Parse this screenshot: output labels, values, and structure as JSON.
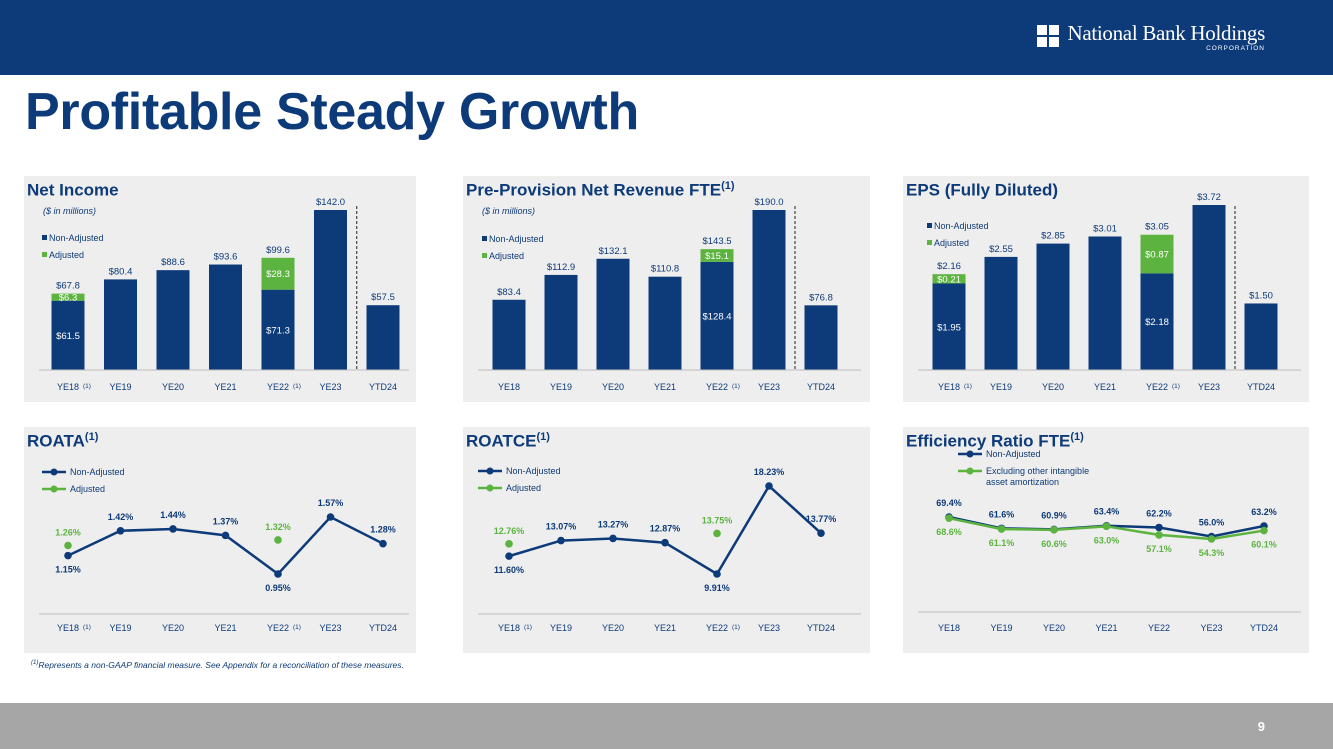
{
  "header": {
    "logo_text": "National Bank Holdings",
    "logo_sub": "CORPORATION"
  },
  "page_title": "Profitable Steady Growth",
  "footnote_marker": "(1)",
  "footnote_text": "Represents a non-GAAP financial measure.  See Appendix for a reconciliation of these measures.",
  "page_number": "9",
  "colors": {
    "navy": "#0d3a78",
    "green": "#5cb33f",
    "panel": "#eeeeee"
  },
  "chart_data": [
    {
      "type": "bar",
      "title": "Net Income",
      "title_sup": "",
      "subtitle": "($ in millions)",
      "categories": [
        "YE18",
        "YE19",
        "YE20",
        "YE21",
        "YE22",
        "YE23",
        "YTD24"
      ],
      "category_footnotes": [
        "(1)",
        "",
        "",
        "",
        "(1)",
        "",
        ""
      ],
      "series": [
        {
          "name": "Non-Adjusted",
          "values": [
            61.5,
            80.4,
            88.6,
            93.6,
            71.3,
            142.0,
            57.5
          ]
        },
        {
          "name": "Adjusted",
          "values": [
            6.3,
            null,
            null,
            null,
            28.3,
            null,
            null
          ]
        }
      ],
      "top_labels": [
        "$67.8",
        "$80.4",
        "$88.6",
        "$93.6",
        "$99.6",
        "$142.0",
        "$57.5"
      ],
      "inner_labels": [
        "$61.5",
        "",
        "",
        "",
        "$71.3",
        "",
        ""
      ],
      "adj_labels": [
        "$6.3",
        "",
        "",
        "",
        "$28.3",
        "",
        ""
      ],
      "ylim": [
        0,
        142.0
      ]
    },
    {
      "type": "bar",
      "title": "Pre-Provision Net Revenue FTE",
      "title_sup": "(1)",
      "subtitle": "($ in millions)",
      "categories": [
        "YE18",
        "YE19",
        "YE20",
        "YE21",
        "YE22",
        "YE23",
        "YTD24"
      ],
      "category_footnotes": [
        "",
        "",
        "",
        "",
        "(1)",
        "",
        ""
      ],
      "series": [
        {
          "name": "Non-Adjusted",
          "values": [
            83.4,
            112.9,
            132.1,
            110.8,
            128.4,
            190.0,
            76.8
          ]
        },
        {
          "name": "Adjusted",
          "values": [
            null,
            null,
            null,
            null,
            15.1,
            null,
            null
          ]
        }
      ],
      "top_labels": [
        "$83.4",
        "$112.9",
        "$132.1",
        "$110.8",
        "$143.5",
        "$190.0",
        "$76.8"
      ],
      "inner_labels": [
        "",
        "",
        "",
        "",
        "$128.4",
        "",
        ""
      ],
      "adj_labels": [
        "",
        "",
        "",
        "",
        "$15.1",
        "",
        ""
      ],
      "ylim": [
        0,
        190.0
      ]
    },
    {
      "type": "bar",
      "title": "EPS (Fully Diluted)",
      "title_sup": "",
      "subtitle": "",
      "categories": [
        "YE18",
        "YE19",
        "YE20",
        "YE21",
        "YE22",
        "YE23",
        "YTD24"
      ],
      "category_footnotes": [
        "(1)",
        "",
        "",
        "",
        "(1)",
        "",
        ""
      ],
      "series": [
        {
          "name": "Non-Adjusted",
          "values": [
            1.95,
            2.55,
            2.85,
            3.01,
            2.18,
            3.72,
            1.5
          ]
        },
        {
          "name": "Adjusted",
          "values": [
            0.21,
            null,
            null,
            null,
            0.87,
            null,
            null
          ]
        }
      ],
      "top_labels": [
        "$2.16",
        "$2.55",
        "$2.85",
        "$3.01",
        "$3.05",
        "$3.72",
        "$1.50"
      ],
      "inner_labels": [
        "$1.95",
        "",
        "",
        "",
        "$2.18",
        "",
        ""
      ],
      "adj_labels": [
        "$0.21",
        "",
        "",
        "",
        "$0.87",
        "",
        ""
      ],
      "ylim": [
        0,
        3.72
      ]
    },
    {
      "type": "line",
      "title": "ROATA",
      "title_sup": "(1)",
      "categories": [
        "YE18",
        "YE19",
        "YE20",
        "YE21",
        "YE22",
        "YE23",
        "YTD24"
      ],
      "category_footnotes": [
        "(1)",
        "",
        "",
        "",
        "(1)",
        "",
        ""
      ],
      "series": [
        {
          "name": "Non-Adjusted",
          "values": [
            1.15,
            1.42,
            1.44,
            1.37,
            0.95,
            1.57,
            1.28
          ],
          "labels": [
            "1.15%",
            "1.42%",
            "1.44%",
            "1.37%",
            "0.95%",
            "1.57%",
            "1.28%"
          ]
        },
        {
          "name": "Adjusted",
          "values": [
            1.26,
            null,
            null,
            null,
            1.32,
            null,
            null
          ],
          "labels": [
            "1.26%",
            "",
            "",
            "",
            "1.32%",
            "",
            ""
          ]
        }
      ],
      "ylim": [
        0.95,
        1.57
      ]
    },
    {
      "type": "line",
      "title": "ROATCE",
      "title_sup": "(1)",
      "categories": [
        "YE18",
        "YE19",
        "YE20",
        "YE21",
        "YE22",
        "YE23",
        "YTD24"
      ],
      "category_footnotes": [
        "(1)",
        "",
        "",
        "",
        "(1)",
        "",
        ""
      ],
      "series": [
        {
          "name": "Non-Adjusted",
          "values": [
            11.6,
            13.07,
            13.27,
            12.87,
            9.91,
            18.23,
            13.77
          ],
          "labels": [
            "11.60%",
            "13.07%",
            "13.27%",
            "12.87%",
            "9.91%",
            "18.23%",
            "13.77%"
          ]
        },
        {
          "name": "Adjusted",
          "values": [
            12.76,
            null,
            null,
            null,
            13.75,
            null,
            null
          ],
          "labels": [
            "12.76%",
            "",
            "",
            "",
            "13.75%",
            "",
            ""
          ]
        }
      ],
      "ylim": [
        9.91,
        18.23
      ]
    },
    {
      "type": "line",
      "title": "Efficiency Ratio FTE",
      "title_sup": "(1)",
      "categories": [
        "YE18",
        "YE19",
        "YE20",
        "YE21",
        "YE22",
        "YE23",
        "YTD24"
      ],
      "category_footnotes": [
        "",
        "",
        "",
        "",
        "",
        "",
        ""
      ],
      "series": [
        {
          "name": "Non-Adjusted",
          "values": [
            69.4,
            61.6,
            60.9,
            63.4,
            62.2,
            56.0,
            63.2
          ],
          "labels": [
            "69.4%",
            "61.6%",
            "60.9%",
            "63.4%",
            "62.2%",
            "56.0%",
            "63.2%"
          ]
        },
        {
          "name": "Excluding other intangible asset amortization",
          "values": [
            68.6,
            61.1,
            60.6,
            63.0,
            57.1,
            54.3,
            60.1
          ],
          "labels": [
            "68.6%",
            "61.1%",
            "60.6%",
            "63.0%",
            "57.1%",
            "54.3%",
            "60.1%"
          ]
        }
      ],
      "ylim": [
        54.3,
        69.4
      ]
    }
  ]
}
